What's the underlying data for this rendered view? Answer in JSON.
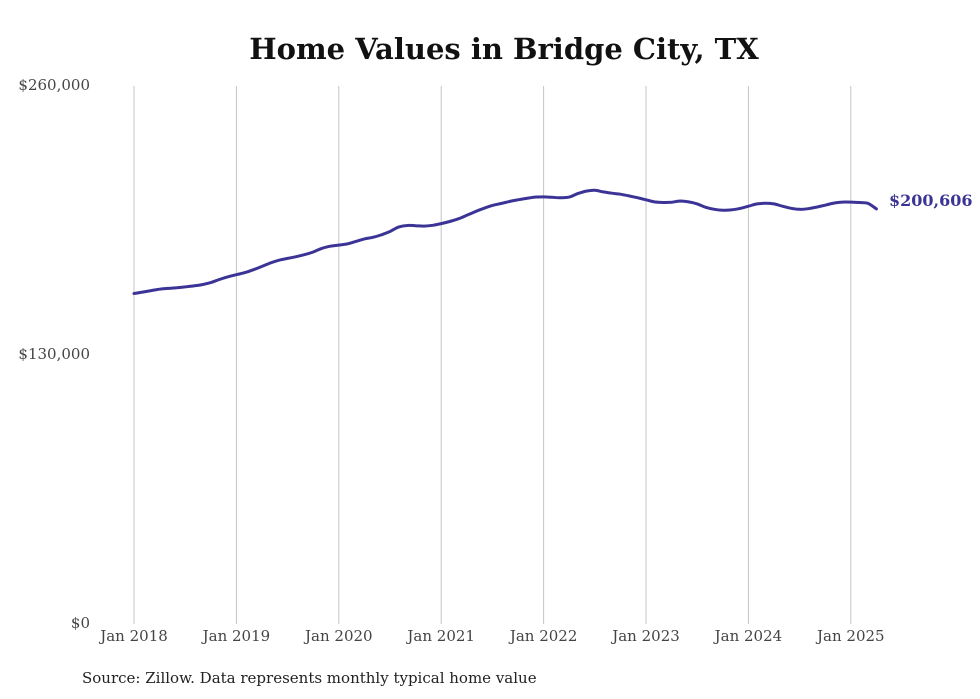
{
  "chart_data": {
    "type": "line",
    "title": "Home Values in Bridge City, TX",
    "xlabel": "",
    "ylabel": "",
    "ylim": [
      0,
      260000
    ],
    "yticks": [
      {
        "value": 0,
        "label": "$0"
      },
      {
        "value": 130000,
        "label": "$130,000"
      },
      {
        "value": 260000,
        "label": "$260,000"
      }
    ],
    "xticks": [
      {
        "value": "2018-01",
        "label": "Jan 2018"
      },
      {
        "value": "2019-01",
        "label": "Jan 2019"
      },
      {
        "value": "2020-01",
        "label": "Jan 2020"
      },
      {
        "value": "2021-01",
        "label": "Jan 2021"
      },
      {
        "value": "2022-01",
        "label": "Jan 2022"
      },
      {
        "value": "2023-01",
        "label": "Jan 2023"
      },
      {
        "value": "2024-01",
        "label": "Jan 2024"
      },
      {
        "value": "2025-01",
        "label": "Jan 2025"
      }
    ],
    "grid": "vertical",
    "legend": "none",
    "line_color": "#3b3496",
    "end_label": "$200,606",
    "source": "Source: Zillow. Data represents monthly typical home value",
    "series": [
      {
        "x": [
          "2018-01",
          "2018-02",
          "2018-03",
          "2018-04",
          "2018-05",
          "2018-06",
          "2018-07",
          "2018-08",
          "2018-09",
          "2018-10",
          "2018-11",
          "2018-12",
          "2019-01",
          "2019-02",
          "2019-03",
          "2019-04",
          "2019-05",
          "2019-06",
          "2019-07",
          "2019-08",
          "2019-09",
          "2019-10",
          "2019-11",
          "2019-12",
          "2020-01",
          "2020-02",
          "2020-03",
          "2020-04",
          "2020-05",
          "2020-06",
          "2020-07",
          "2020-08",
          "2020-09",
          "2020-10",
          "2020-11",
          "2020-12",
          "2021-01",
          "2021-02",
          "2021-03",
          "2021-04",
          "2021-05",
          "2021-06",
          "2021-07",
          "2021-08",
          "2021-09",
          "2021-10",
          "2021-11",
          "2021-12",
          "2022-01",
          "2022-02",
          "2022-03",
          "2022-04",
          "2022-05",
          "2022-06",
          "2022-07",
          "2022-08",
          "2022-09",
          "2022-10",
          "2022-11",
          "2022-12",
          "2023-01",
          "2023-02",
          "2023-03",
          "2023-04",
          "2023-05",
          "2023-06",
          "2023-07",
          "2023-08",
          "2023-09",
          "2023-10",
          "2023-11",
          "2023-12",
          "2024-01",
          "2024-02",
          "2024-03",
          "2024-04",
          "2024-05",
          "2024-06",
          "2024-07",
          "2024-08",
          "2024-09",
          "2024-10",
          "2024-11",
          "2024-12",
          "2025-01",
          "2025-02",
          "2025-03",
          "2025-04"
        ],
        "values": [
          159700,
          160400,
          161100,
          161800,
          162200,
          162500,
          162900,
          163400,
          164000,
          165000,
          166500,
          167800,
          168800,
          169800,
          171200,
          172800,
          174500,
          175800,
          176700,
          177500,
          178500,
          179800,
          181500,
          182600,
          183100,
          183700,
          184900,
          186100,
          186900,
          188100,
          189700,
          191800,
          192600,
          192500,
          192300,
          192700,
          193500,
          194500,
          195800,
          197500,
          199300,
          200900,
          202300,
          203200,
          204200,
          205000,
          205700,
          206300,
          206400,
          206200,
          206000,
          206300,
          208000,
          209200,
          209600,
          208800,
          208200,
          207700,
          206900,
          206000,
          205000,
          204000,
          203700,
          203800,
          204400,
          204000,
          203000,
          201400,
          200400,
          200000,
          200100,
          200800,
          201900,
          203000,
          203300,
          203000,
          201900,
          200900,
          200400,
          200700,
          201500,
          202400,
          203400,
          203900,
          203900,
          203700,
          203300,
          200606
        ]
      }
    ]
  }
}
